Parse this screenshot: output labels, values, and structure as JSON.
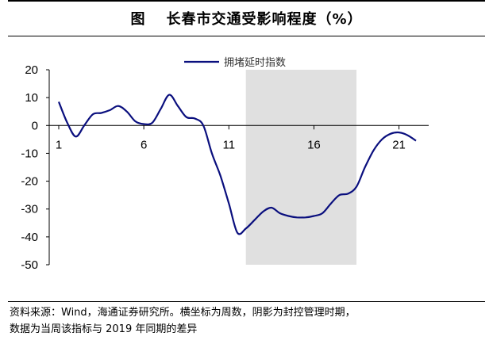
{
  "header": {
    "figure_label": "图",
    "title": "长春市交通受影响程度（%）"
  },
  "source_note": {
    "line1": "资料来源：Wind，海通证券研究所。横坐标为周数，阴影为封控管理时期，",
    "line2": "数据为当周该指标与 2019 年同期的差异"
  },
  "chart_data": {
    "type": "line",
    "title": "长春市交通受影响程度（%）",
    "xlabel": "",
    "ylabel": "",
    "xlim": [
      1,
      22
    ],
    "ylim": [
      -50,
      20
    ],
    "y_ticks": [
      20,
      10,
      0,
      -10,
      -20,
      -30,
      -40,
      -50
    ],
    "y_tick_labels": [
      "20",
      "10",
      "0",
      "-10",
      "-20",
      "-30",
      "-40",
      "-50"
    ],
    "x_ticks": [
      1,
      6,
      11,
      16,
      21
    ],
    "x_tick_labels": [
      "1",
      "6",
      "11",
      "16",
      "21"
    ],
    "shaded_region": [
      12,
      18.5
    ],
    "shade_color": "#e0e0e0",
    "line_color": "#0a0f7e",
    "legend_position": "top-center",
    "series": [
      {
        "name": "拥堵延时指数",
        "x": [
          1,
          1.5,
          2,
          2.5,
          3,
          3.5,
          4,
          4.5,
          5,
          5.5,
          6,
          6.5,
          7,
          7.5,
          8,
          8.5,
          9,
          9.5,
          10,
          10.5,
          11,
          11.5,
          12,
          12.5,
          13,
          13.5,
          14,
          14.5,
          15,
          15.5,
          16,
          16.5,
          17,
          17.5,
          18,
          18.5,
          19,
          19.5,
          20,
          20.5,
          21,
          21.5,
          22
        ],
        "values": [
          8.5,
          1,
          -4,
          0,
          4,
          4.5,
          5.5,
          7,
          5,
          1.5,
          0.5,
          1,
          6,
          11,
          7,
          3,
          2.5,
          0,
          -10,
          -18,
          -28,
          -38.5,
          -37,
          -34,
          -31,
          -29.5,
          -31.5,
          -32.5,
          -33,
          -33,
          -32.5,
          -31.5,
          -28,
          -25,
          -24.5,
          -22,
          -15,
          -9,
          -5,
          -3,
          -2.5,
          -3.5,
          -5.5
        ]
      }
    ]
  }
}
